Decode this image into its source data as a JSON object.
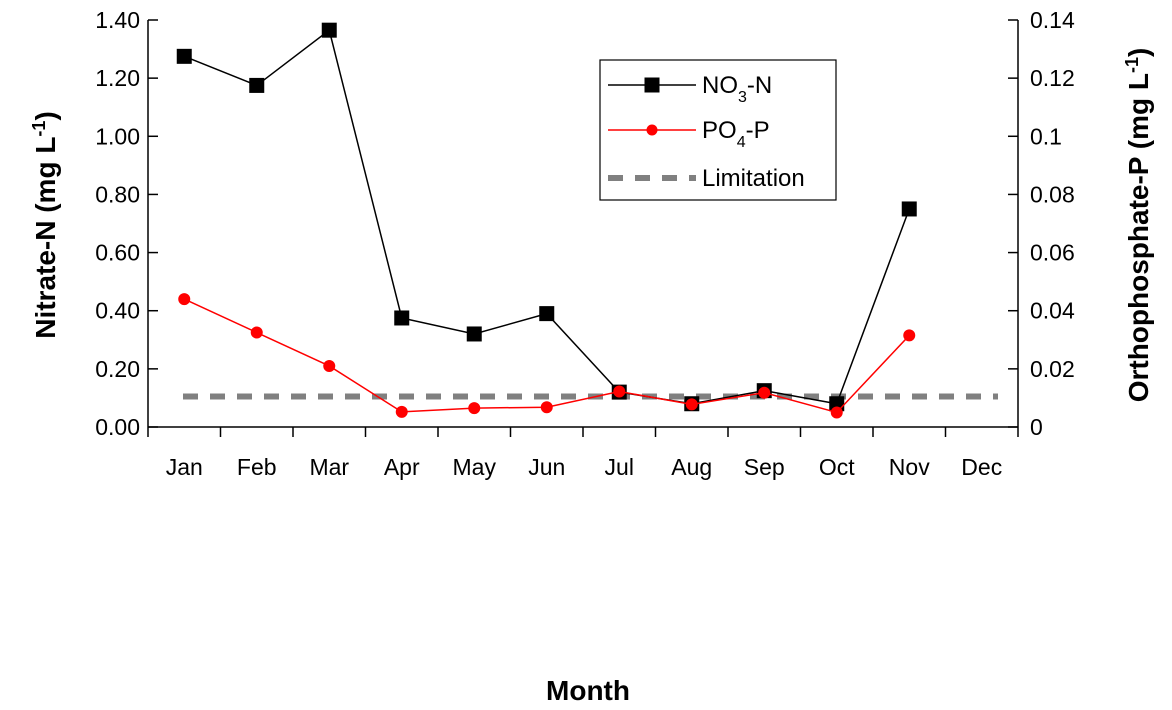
{
  "chart_data": {
    "type": "line",
    "xlabel": "Month",
    "ylabel_left": "Nitrate-N (mg L",
    "ylabel_left_sup": "-1",
    "ylabel_left_end": ")",
    "ylabel_right": "Orthophosphate-P (mg L",
    "ylabel_right_sup": "-1",
    "ylabel_right_end": ")",
    "categories": [
      "Jan",
      "Feb",
      "Mar",
      "Apr",
      "May",
      "Jun",
      "Jul",
      "Aug",
      "Sep",
      "Oct",
      "Nov",
      "Dec"
    ],
    "y_left": {
      "range": [
        0,
        1.4
      ],
      "ticks": [
        0,
        0.2,
        0.4,
        0.6,
        0.8,
        1.0,
        1.2,
        1.4
      ],
      "tick_labels": [
        "0.00",
        "0.20",
        "0.40",
        "0.60",
        "0.80",
        "1.00",
        "1.20",
        "1.40"
      ]
    },
    "y_right": {
      "range": [
        0,
        0.14
      ],
      "ticks": [
        0,
        0.02,
        0.04,
        0.06,
        0.08,
        0.1,
        0.12,
        0.14
      ],
      "tick_labels": [
        "0",
        "0.02",
        "0.04",
        "0.06",
        "0.08",
        "0.1",
        "0.12",
        "0.14"
      ]
    },
    "grid": false,
    "legend_position": "top-right",
    "series": [
      {
        "name": "NO3-N",
        "legend_main": "NO",
        "legend_sub": "3",
        "legend_end": "-N",
        "axis": "left",
        "color": "#000000",
        "marker": "square",
        "values": [
          1.275,
          1.175,
          1.365,
          0.375,
          0.32,
          0.39,
          0.12,
          0.08,
          0.125,
          0.08,
          0.75,
          null
        ]
      },
      {
        "name": "PO4-P",
        "legend_main": "PO",
        "legend_sub": "4",
        "legend_end": "-P",
        "axis": "right",
        "color": "#ff0000",
        "marker": "circle",
        "values": [
          0.044,
          0.0325,
          0.021,
          0.0052,
          0.0065,
          0.0068,
          0.0122,
          0.0078,
          0.0118,
          0.005,
          0.0315,
          null
        ]
      },
      {
        "name": "Limitation",
        "legend_main": "Limitation",
        "axis": "left",
        "color": "#808080",
        "style": "dashed",
        "value": 0.105
      }
    ]
  }
}
